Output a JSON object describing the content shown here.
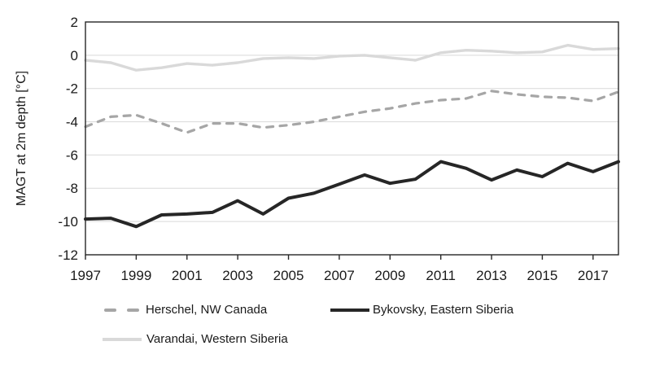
{
  "figure": {
    "background": "#ffffff"
  },
  "chart_data": {
    "type": "line",
    "title": "",
    "ylabel": "MAGT at 2m depth [°C]",
    "xlabel": "",
    "ylim": [
      -12,
      2
    ],
    "ytick_step": 2,
    "grid": "horizontal",
    "grid_color": "#d9d9d9",
    "axis_color": "#262626",
    "text_color": "#1a1a1a",
    "legend_position": "bottom",
    "x": [
      1997,
      1998,
      1999,
      2000,
      2001,
      2002,
      2003,
      2004,
      2005,
      2006,
      2007,
      2008,
      2009,
      2010,
      2011,
      2012,
      2013,
      2014,
      2015,
      2016,
      2017,
      2018
    ],
    "xtick_labels": [
      "1997",
      "1999",
      "2001",
      "2003",
      "2005",
      "2007",
      "2009",
      "2011",
      "2013",
      "2015",
      "2017"
    ],
    "series": [
      {
        "name": "Herschel, NW Canada",
        "color": "#a6a6a6",
        "style": "dashed",
        "width": 3.2,
        "values": [
          -4.3,
          -3.7,
          -3.6,
          -4.1,
          -4.65,
          -4.1,
          -4.1,
          -4.35,
          -4.2,
          -4.0,
          -3.7,
          -3.4,
          -3.2,
          -2.9,
          -2.7,
          -2.6,
          -2.15,
          -2.35,
          -2.5,
          -2.55,
          -2.75,
          -2.2
        ]
      },
      {
        "name": "Bykovsky, Eastern Siberia",
        "color": "#262626",
        "style": "solid",
        "width": 4,
        "values": [
          -9.85,
          -9.8,
          -10.3,
          -9.6,
          -9.55,
          -9.45,
          -8.75,
          -9.55,
          -8.6,
          -8.3,
          -7.75,
          -7.2,
          -7.7,
          -7.45,
          -6.4,
          -6.8,
          -7.5,
          -6.9,
          -7.3,
          -6.5,
          -7.0,
          -6.4
        ]
      },
      {
        "name": "Varandai, Western Siberia",
        "color": "#d9d9d9",
        "style": "solid",
        "width": 3.4,
        "values": [
          -0.3,
          -0.45,
          -0.9,
          -0.75,
          -0.5,
          -0.6,
          -0.45,
          -0.2,
          -0.15,
          -0.2,
          -0.05,
          0.0,
          -0.15,
          -0.3,
          0.15,
          0.3,
          0.25,
          0.15,
          0.2,
          0.6,
          0.35,
          0.4
        ]
      }
    ]
  }
}
